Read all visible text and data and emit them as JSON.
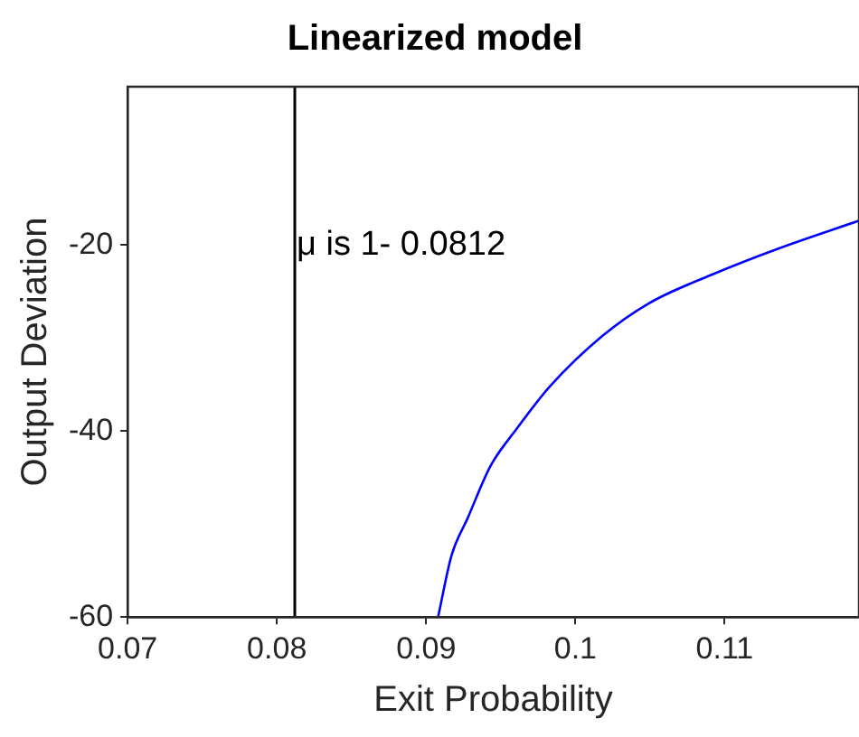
{
  "chart_data": {
    "type": "line",
    "title": "Linearized model",
    "xlabel": "Exit Probability",
    "ylabel": "Output Deviation",
    "x": [
      0.0908,
      0.0917,
      0.0928,
      0.0943,
      0.0961,
      0.0983,
      0.1018,
      0.1049,
      0.1093,
      0.1136,
      0.119
    ],
    "series": [
      {
        "color": "#0000ff",
        "values": [
          -60,
          -53.4,
          -49.3,
          -43.8,
          -39.7,
          -35.2,
          -29.8,
          -26.3,
          -23.1,
          -20.4,
          -17.4
        ]
      }
    ],
    "xlim": [
      0.07,
      0.119
    ],
    "ylim": [
      -60,
      -3
    ],
    "xticks": [
      0.07,
      0.08,
      0.09,
      0.1,
      0.11
    ],
    "yticks": [
      -60,
      -40,
      -20
    ],
    "ref_lines": [
      {
        "axis": "x",
        "value": 0.0812,
        "color": "#000000"
      }
    ],
    "annotations": [
      {
        "text": "μ is 1- 0.0812",
        "x": 0.0812,
        "y": -20
      }
    ],
    "marker": "none",
    "line_style": "solid",
    "grid": false,
    "legend": false
  }
}
